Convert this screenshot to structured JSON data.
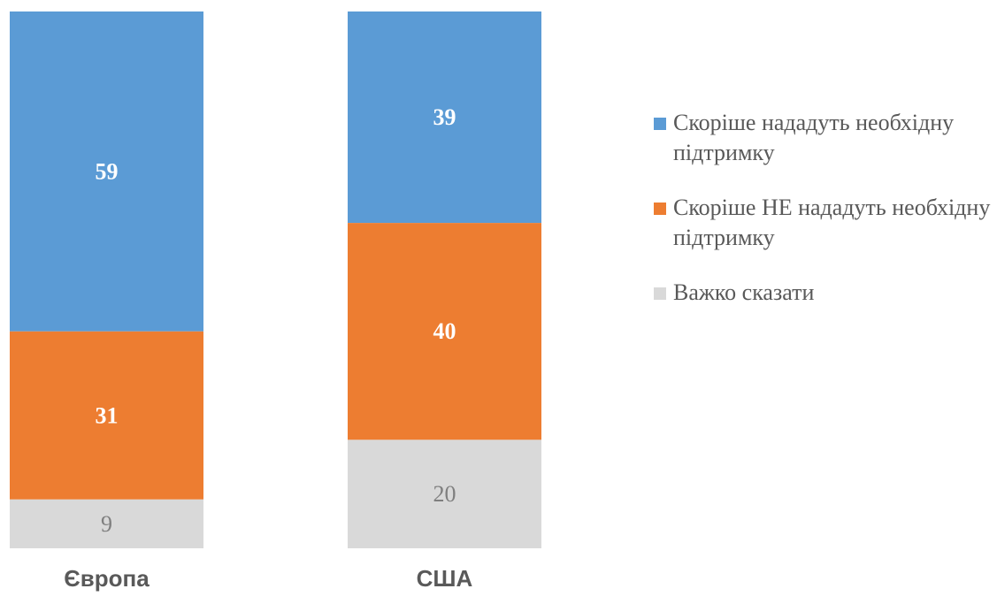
{
  "chart_data": {
    "type": "bar",
    "stacked": true,
    "orientation": "vertical",
    "categories": [
      "Європа",
      "США"
    ],
    "series": [
      {
        "name": "Скоріше нададуть необхідну підтримку",
        "color": "#5b9bd5",
        "values": [
          59,
          39
        ]
      },
      {
        "name": "Скоріше НЕ нададуть необхідну підтримку",
        "color": "#ed7d31",
        "values": [
          31,
          40
        ]
      },
      {
        "name": "Важко сказати",
        "color": "#d9d9d9",
        "values": [
          9,
          20
        ]
      }
    ],
    "legend_position": "right",
    "grid": false,
    "data_labels": true
  }
}
